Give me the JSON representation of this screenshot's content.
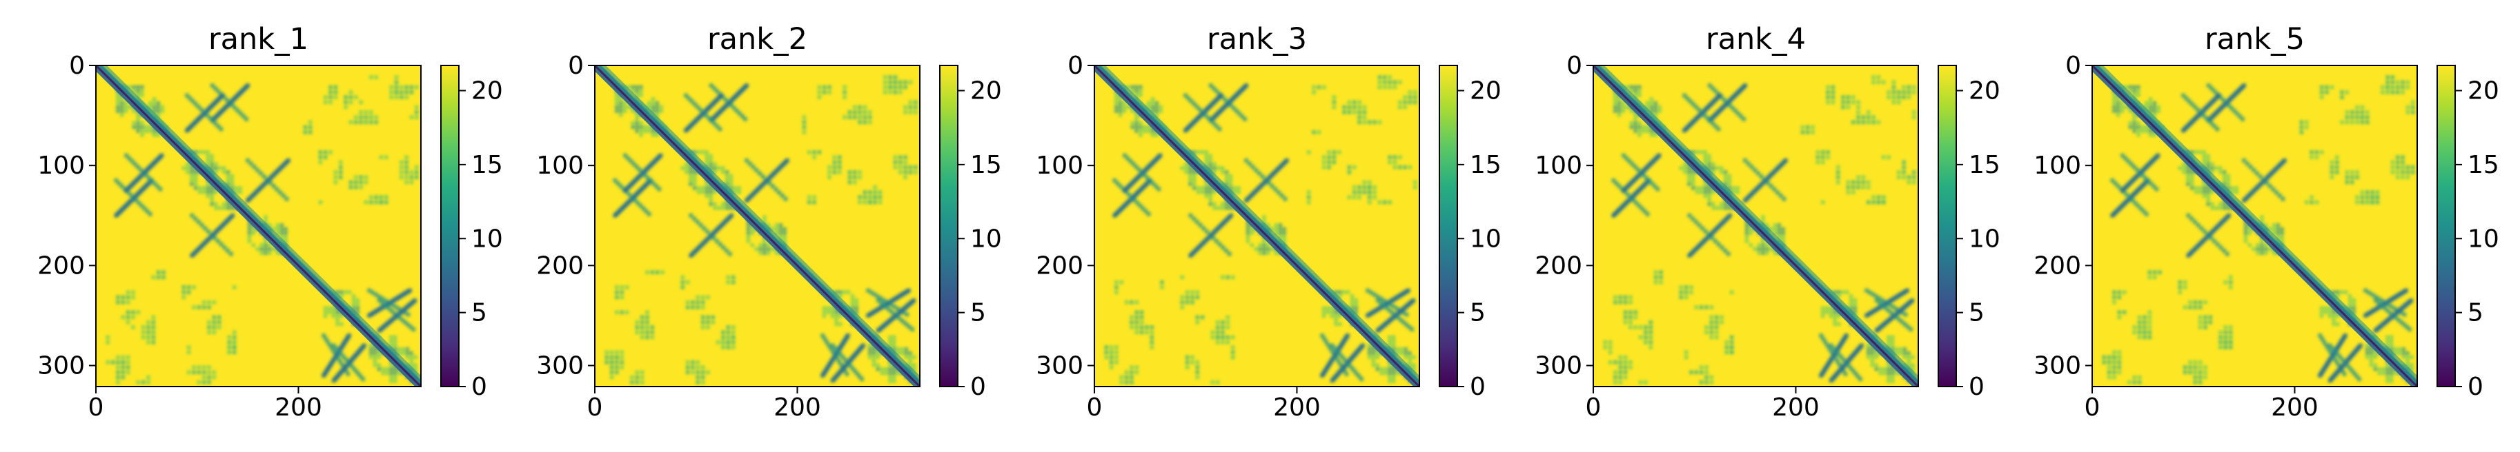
{
  "chart_data": {
    "type": "heatmap",
    "shared": {
      "xlim": [
        0,
        321
      ],
      "ylim": [
        321,
        0
      ],
      "x_ticks": [
        0,
        200
      ],
      "y_ticks": [
        0,
        100,
        200,
        300
      ],
      "colorbar_range": [
        0,
        21.7
      ],
      "colorbar_ticks": [
        0,
        5,
        10,
        15,
        20
      ],
      "colormap": "viridis",
      "grid": false,
      "high_value_color": "#fde725",
      "low_value_color": "#440154"
    },
    "panels": [
      {
        "title": "rank_1",
        "x_tick_labels": [
          "0",
          "200"
        ],
        "y_tick_labels": [
          "0",
          "100",
          "200",
          "300"
        ],
        "colorbar_tick_labels": [
          "0",
          "5",
          "10",
          "15",
          "20"
        ]
      },
      {
        "title": "rank_2",
        "x_tick_labels": [
          "0",
          "200"
        ],
        "y_tick_labels": [
          "0",
          "100",
          "200",
          "300"
        ],
        "colorbar_tick_labels": [
          "0",
          "5",
          "10",
          "15",
          "20"
        ]
      },
      {
        "title": "rank_3",
        "x_tick_labels": [
          "0",
          "200"
        ],
        "y_tick_labels": [
          "0",
          "100",
          "200",
          "300"
        ],
        "colorbar_tick_labels": [
          "0",
          "5",
          "10",
          "15",
          "20"
        ]
      },
      {
        "title": "rank_4",
        "x_tick_labels": [
          "0",
          "200"
        ],
        "y_tick_labels": [
          "0",
          "100",
          "200",
          "300"
        ],
        "colorbar_tick_labels": [
          "0",
          "5",
          "10",
          "15",
          "20"
        ]
      },
      {
        "title": "rank_5",
        "x_tick_labels": [
          "0",
          "200"
        ],
        "y_tick_labels": [
          "0",
          "100",
          "200",
          "300"
        ],
        "colorbar_tick_labels": [
          "0",
          "5",
          "10",
          "15",
          "20"
        ]
      }
    ],
    "contact_features": {
      "diagonal": [
        0,
        321
      ],
      "helical_blocks": [
        [
          20,
          70
        ],
        [
          85,
          145
        ],
        [
          150,
          190
        ],
        [
          225,
          260
        ],
        [
          270,
          315
        ]
      ],
      "sheet_hairpins": [
        [
          20,
          55,
          115,
          150
        ],
        [
          30,
          65,
          90,
          125
        ],
        [
          95,
          135,
          150,
          190
        ],
        [
          225,
          250,
          270,
          310
        ],
        [
          235,
          265,
          280,
          315
        ]
      ],
      "long_range_patches": [
        [
          15,
          60,
          245,
          320
        ],
        [
          100,
          140,
          250,
          320
        ],
        [
          205,
          240,
          20,
          70
        ],
        [
          210,
          245,
          85,
          140
        ],
        [
          260,
          300,
          10,
          60
        ],
        [
          270,
          310,
          90,
          140
        ]
      ]
    }
  }
}
